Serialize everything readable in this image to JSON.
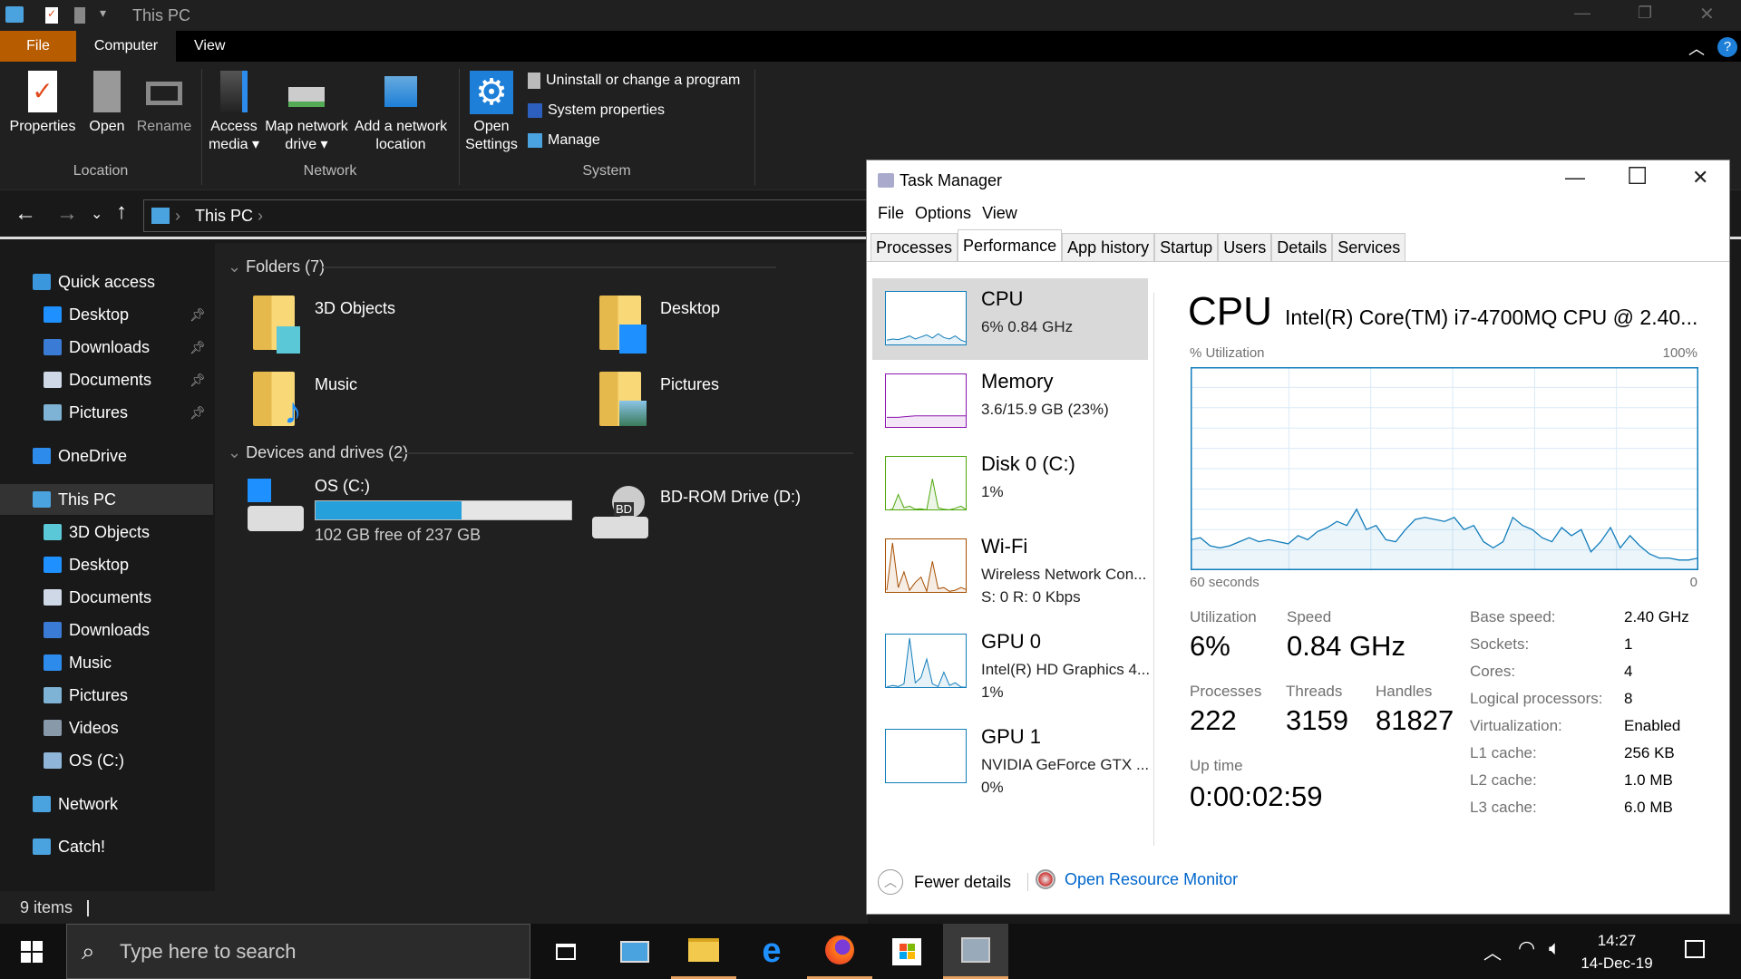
{
  "explorer": {
    "title": "This PC",
    "ribbon_tabs": [
      "File",
      "Computer",
      "View"
    ],
    "file_tab_color": "#b85c00",
    "location_buttons": [
      "Properties",
      "Open",
      "Rename"
    ],
    "network_buttons": [
      {
        "l1": "Access",
        "l2": "media ▾"
      },
      {
        "l1": "Map network",
        "l2": "drive ▾"
      },
      {
        "l1": "Add a network",
        "l2": "location"
      }
    ],
    "open_settings": {
      "l1": "Open",
      "l2": "Settings"
    },
    "system_links": [
      "Uninstall or change a program",
      "System properties",
      "Manage"
    ],
    "groups": [
      "Location",
      "Network",
      "System"
    ],
    "address": "This PC",
    "sidebar": [
      {
        "label": "Quick access",
        "icon": "star-icon",
        "color": "#3a96dd",
        "indent": 0
      },
      {
        "label": "Desktop",
        "icon": "desktop-icon",
        "color": "#1e90ff",
        "indent": 1,
        "pinned": true
      },
      {
        "label": "Downloads",
        "icon": "download-icon",
        "color": "#3a7bd5",
        "indent": 1,
        "pinned": true
      },
      {
        "label": "Documents",
        "icon": "document-icon",
        "color": "#cfd8e6",
        "indent": 1,
        "pinned": true
      },
      {
        "label": "Pictures",
        "icon": "pictures-icon",
        "color": "#7fb3d5",
        "indent": 1,
        "pinned": true
      },
      {
        "label": "OneDrive",
        "icon": "cloud-icon",
        "color": "#2d8ceb",
        "indent": 0
      },
      {
        "label": "This PC",
        "icon": "computer-icon",
        "color": "#4aa3df",
        "indent": 0,
        "selected": true
      },
      {
        "label": "3D Objects",
        "icon": "cube-icon",
        "color": "#5bc8d8",
        "indent": 1
      },
      {
        "label": "Desktop",
        "icon": "desktop-icon",
        "color": "#1e90ff",
        "indent": 1
      },
      {
        "label": "Documents",
        "icon": "document-icon",
        "color": "#cfd8e6",
        "indent": 1
      },
      {
        "label": "Downloads",
        "icon": "download-icon",
        "color": "#3a7bd5",
        "indent": 1
      },
      {
        "label": "Music",
        "icon": "music-icon",
        "color": "#2d8ceb",
        "indent": 1
      },
      {
        "label": "Pictures",
        "icon": "pictures-icon",
        "color": "#7fb3d5",
        "indent": 1
      },
      {
        "label": "Videos",
        "icon": "video-icon",
        "color": "#8899aa",
        "indent": 1
      },
      {
        "label": "OS (C:)",
        "icon": "drive-icon",
        "color": "#8fb6d8",
        "indent": 1
      },
      {
        "label": "Network",
        "icon": "network-icon",
        "color": "#4aa3df",
        "indent": 0
      },
      {
        "label": "Catch!",
        "icon": "catch-icon",
        "color": "#4aa3df",
        "indent": 0
      }
    ],
    "folders_header": "Folders (7)",
    "folders": [
      "3D Objects",
      "Desktop",
      "Music",
      "Pictures"
    ],
    "drives_header": "Devices and drives (2)",
    "drive_c": {
      "name": "OS (C:)",
      "free": "102 GB free of 237 GB",
      "used_fraction": 0.57
    },
    "drive_d": {
      "name": "BD-ROM Drive (D:)"
    },
    "status": "9 items"
  },
  "taskbar": {
    "search_placeholder": "Type here to search",
    "time": "14:27",
    "date": "14-Dec-19"
  },
  "tm": {
    "title": "Task Manager",
    "menu": [
      "File",
      "Options",
      "View"
    ],
    "tabs": [
      "Processes",
      "Performance",
      "App history",
      "Startup",
      "Users",
      "Details",
      "Services"
    ],
    "selected_tab": "Performance",
    "items": [
      {
        "name": "CPU",
        "sub": [
          "6%  0.84 GHz"
        ],
        "color": "#117dbb",
        "spark": [
          10,
          12,
          11,
          14,
          18,
          12,
          16,
          20,
          14,
          22,
          15,
          12,
          18,
          10,
          6
        ]
      },
      {
        "name": "Memory",
        "sub": [
          "3.6/15.9 GB (23%)"
        ],
        "color": "#8b12ae",
        "spark": [
          20,
          20,
          20,
          21,
          22,
          23,
          23,
          23,
          23,
          23,
          23,
          23,
          23,
          23,
          23
        ]
      },
      {
        "name": "Disk 0 (C:)",
        "sub": [
          "1%"
        ],
        "color": "#4da60c",
        "spark": [
          0,
          2,
          30,
          5,
          8,
          2,
          3,
          1,
          60,
          5,
          2,
          1,
          4,
          8,
          1
        ]
      },
      {
        "name": "Wi-Fi",
        "sub": [
          "Wireless Network Con...",
          "S: 0 R: 0 Kbps"
        ],
        "color": "#a74f01",
        "spark": [
          5,
          95,
          10,
          40,
          5,
          20,
          30,
          3,
          60,
          8,
          10,
          3,
          5,
          10,
          6
        ]
      },
      {
        "name": "GPU 0",
        "sub": [
          "Intel(R) HD Graphics 4...",
          "1%"
        ],
        "color": "#117dbb",
        "spark": [
          2,
          5,
          3,
          8,
          95,
          10,
          20,
          55,
          8,
          3,
          30,
          5,
          10,
          2,
          1
        ]
      },
      {
        "name": "GPU 1",
        "sub": [
          "NVIDIA GeForce GTX ...",
          "0%"
        ],
        "color": "#117dbb",
        "spark": [
          0,
          0,
          0,
          0,
          0,
          0,
          0,
          0,
          0,
          0,
          0,
          0,
          0,
          0,
          0
        ]
      }
    ],
    "heading": "CPU",
    "model": "Intel(R) Core(TM) i7-4700MQ CPU @ 2.40...",
    "graph_label": "% Utilization",
    "graph_max": "100%",
    "graph_left": "60 seconds",
    "graph_right": "0",
    "graph_color": "#117dbb",
    "cpu_history": [
      15,
      16,
      12,
      11,
      12,
      14,
      16,
      14,
      15,
      14,
      13,
      17,
      15,
      19,
      21,
      24,
      22,
      30,
      20,
      22,
      15,
      14,
      20,
      25,
      26,
      25,
      24,
      26,
      20,
      22,
      14,
      11,
      14,
      26,
      22,
      20,
      16,
      14,
      21,
      17,
      20,
      9,
      14,
      21,
      11,
      17,
      12,
      8,
      6,
      6,
      5,
      5,
      6
    ],
    "stats": {
      "utilization_label": "Utilization",
      "utilization": "6%",
      "speed_label": "Speed",
      "speed": "0.84 GHz",
      "processes_label": "Processes",
      "processes": "222",
      "threads_label": "Threads",
      "threads": "3159",
      "handles_label": "Handles",
      "handles": "81827",
      "uptime_label": "Up time",
      "uptime": "0:00:02:59"
    },
    "specs": [
      [
        "Base speed:",
        "2.40 GHz"
      ],
      [
        "Sockets:",
        "1"
      ],
      [
        "Cores:",
        "4"
      ],
      [
        "Logical processors:",
        "8"
      ],
      [
        "Virtualization:",
        "Enabled"
      ],
      [
        "L1 cache:",
        "256 KB"
      ],
      [
        "L2 cache:",
        "1.0 MB"
      ],
      [
        "L3 cache:",
        "6.0 MB"
      ]
    ],
    "fewer_details": "Fewer details",
    "resource_monitor": "Open Resource Monitor"
  }
}
